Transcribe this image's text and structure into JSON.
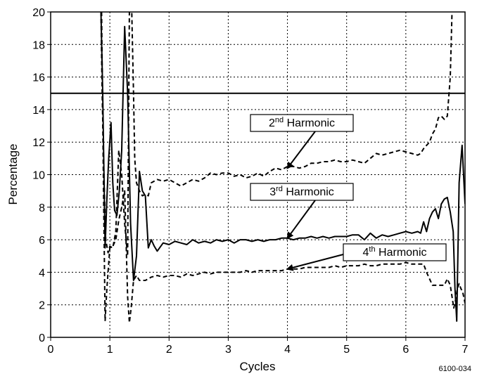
{
  "chart_data": {
    "type": "line",
    "xlabel": "Cycles",
    "ylabel": "Percentage",
    "xlim": [
      0,
      7
    ],
    "ylim": [
      0,
      20
    ],
    "x_ticks": [
      0,
      1,
      2,
      3,
      4,
      5,
      6,
      7
    ],
    "y_ticks": [
      0,
      2,
      4,
      6,
      8,
      10,
      12,
      14,
      16,
      18,
      20
    ],
    "grid": "dotted",
    "reference_line": {
      "y": 15,
      "style": "solid"
    },
    "annotations": [
      {
        "base": "2",
        "sup": "nd",
        "text": " Harmonic",
        "points_to": [
          4.0,
          10.4
        ]
      },
      {
        "base": "3",
        "sup": "rd",
        "text": " Harmonic",
        "points_to": [
          4.0,
          6.1
        ]
      },
      {
        "base": "4",
        "sup": "th",
        "text": " Harmonic",
        "points_to": [
          4.0,
          4.2
        ]
      }
    ],
    "figure_id": "6100-034",
    "series": [
      {
        "style": "dashed",
        "x": [
          0.85,
          0.87,
          0.9,
          0.93,
          0.97,
          1.0,
          1.05,
          1.1,
          1.15,
          1.2,
          1.25,
          1.3,
          1.33,
          1.37,
          1.4,
          1.42,
          1.45,
          1.5,
          1.55,
          1.6,
          1.65,
          1.7,
          1.8,
          1.9,
          2.0,
          2.1,
          2.2,
          2.3,
          2.4,
          2.5,
          2.6,
          2.7,
          2.8,
          2.9,
          3.0,
          3.1,
          3.2,
          3.3,
          3.4,
          3.5,
          3.6,
          3.7,
          3.8,
          3.9,
          4.0,
          4.1,
          4.2,
          4.3,
          4.4,
          4.5,
          4.6,
          4.7,
          4.8,
          4.9,
          5.0,
          5.1,
          5.2,
          5.3,
          5.4,
          5.5,
          5.6,
          5.7,
          5.8,
          5.9,
          6.0,
          6.1,
          6.2,
          6.25,
          6.3,
          6.35,
          6.4,
          6.45,
          6.5,
          6.55,
          6.6,
          6.65,
          6.7,
          6.75,
          6.78
        ],
        "y": [
          20,
          15.0,
          10.0,
          6.0,
          5.2,
          5.6,
          5.5,
          6.5,
          11.5,
          10.0,
          7.0,
          5.0,
          20,
          20,
          15.0,
          11.0,
          9.5,
          9.0,
          8.7,
          8.8,
          8.7,
          9.5,
          9.7,
          9.6,
          9.7,
          9.5,
          9.3,
          9.5,
          9.7,
          9.6,
          9.8,
          10.1,
          10.0,
          10.1,
          10.1,
          9.9,
          10.0,
          9.8,
          9.9,
          10.1,
          9.9,
          10.2,
          10.4,
          10.3,
          10.5,
          10.5,
          10.4,
          10.5,
          10.7,
          10.7,
          10.8,
          10.8,
          10.9,
          10.8,
          10.8,
          10.9,
          10.8,
          10.7,
          11.0,
          11.3,
          11.2,
          11.3,
          11.4,
          11.5,
          11.4,
          11.3,
          11.2,
          11.3,
          11.6,
          11.8,
          12.0,
          12.5,
          12.8,
          13.5,
          13.6,
          13.4,
          13.6,
          16.0,
          20
        ]
      },
      {
        "style": "solid",
        "x": [
          0.85,
          0.88,
          0.92,
          0.95,
          0.98,
          1.02,
          1.05,
          1.08,
          1.12,
          1.16,
          1.2,
          1.25,
          1.3,
          1.35,
          1.4,
          1.45,
          1.5,
          1.55,
          1.6,
          1.65,
          1.7,
          1.75,
          1.8,
          1.9,
          2.0,
          2.1,
          2.2,
          2.3,
          2.4,
          2.5,
          2.6,
          2.7,
          2.8,
          2.9,
          3.0,
          3.1,
          3.2,
          3.3,
          3.4,
          3.5,
          3.6,
          3.7,
          3.8,
          3.9,
          4.0,
          4.1,
          4.2,
          4.3,
          4.4,
          4.5,
          4.6,
          4.7,
          4.8,
          4.9,
          5.0,
          5.1,
          5.2,
          5.3,
          5.4,
          5.5,
          5.6,
          5.7,
          5.8,
          5.9,
          6.0,
          6.1,
          6.2,
          6.25,
          6.3,
          6.35,
          6.4,
          6.45,
          6.5,
          6.55,
          6.6,
          6.65,
          6.7,
          6.75,
          6.8,
          6.83,
          6.86,
          6.9,
          6.95,
          7.0
        ],
        "y": [
          20,
          15.0,
          5.5,
          8.5,
          11.0,
          13.2,
          9.5,
          7.8,
          7.5,
          9.0,
          11.5,
          19.1,
          15.0,
          7.0,
          3.5,
          5.0,
          10.2,
          9.0,
          8.7,
          5.5,
          6.0,
          5.6,
          5.3,
          5.8,
          5.7,
          5.9,
          5.8,
          5.7,
          6.0,
          5.8,
          5.9,
          5.8,
          6.0,
          5.9,
          6.0,
          5.8,
          6.0,
          6.0,
          5.9,
          6.0,
          5.9,
          6.0,
          6.0,
          6.1,
          6.1,
          6.0,
          6.1,
          6.1,
          6.2,
          6.1,
          6.2,
          6.1,
          6.2,
          6.2,
          6.2,
          6.3,
          6.3,
          6.0,
          6.4,
          6.1,
          6.3,
          6.2,
          6.3,
          6.4,
          6.5,
          6.4,
          6.5,
          6.4,
          7.1,
          6.5,
          7.3,
          7.7,
          7.9,
          7.3,
          8.2,
          8.5,
          8.6,
          7.7,
          6.5,
          3.0,
          1.0,
          9.5,
          11.8,
          8.2
        ]
      },
      {
        "style": "dashed",
        "x": [
          0.86,
          0.89,
          0.92,
          0.95,
          1.0,
          1.05,
          1.1,
          1.15,
          1.2,
          1.25,
          1.3,
          1.33,
          1.36,
          1.4,
          1.45,
          1.5,
          1.55,
          1.6,
          1.65,
          1.7,
          1.8,
          1.9,
          2.0,
          2.1,
          2.2,
          2.3,
          2.4,
          2.5,
          2.6,
          2.7,
          2.8,
          2.9,
          3.0,
          3.1,
          3.2,
          3.3,
          3.4,
          3.5,
          3.6,
          3.7,
          3.8,
          3.9,
          4.0,
          4.1,
          4.2,
          4.3,
          4.4,
          4.5,
          4.6,
          4.7,
          4.8,
          4.9,
          5.0,
          5.1,
          5.2,
          5.3,
          5.4,
          5.5,
          5.6,
          5.7,
          5.8,
          5.9,
          6.0,
          6.1,
          6.2,
          6.25,
          6.3,
          6.35,
          6.4,
          6.45,
          6.5,
          6.55,
          6.6,
          6.65,
          6.7,
          6.75,
          6.78,
          6.81,
          6.84,
          6.87,
          6.9,
          6.93,
          6.96,
          7.0
        ],
        "y": [
          20,
          10.0,
          1.0,
          3.0,
          5.5,
          5.6,
          6.0,
          7.2,
          8.0,
          9.0,
          2.5,
          0.9,
          1.8,
          3.5,
          3.8,
          3.5,
          3.5,
          3.5,
          3.6,
          3.7,
          3.8,
          3.7,
          3.8,
          3.8,
          3.7,
          3.9,
          3.8,
          3.9,
          4.0,
          3.9,
          4.0,
          4.0,
          4.0,
          4.0,
          4.0,
          4.1,
          4.0,
          4.1,
          4.1,
          4.1,
          4.1,
          4.1,
          4.2,
          4.2,
          4.2,
          4.3,
          4.3,
          4.3,
          4.3,
          4.3,
          4.4,
          4.3,
          4.4,
          4.4,
          4.4,
          4.5,
          4.4,
          4.4,
          4.5,
          4.5,
          4.5,
          4.5,
          4.6,
          4.5,
          4.5,
          4.5,
          4.5,
          4.0,
          3.6,
          3.2,
          3.2,
          3.2,
          3.2,
          3.2,
          3.6,
          3.2,
          2.5,
          1.8,
          2.3,
          3.0,
          3.3,
          3.0,
          2.8,
          2.1
        ]
      }
    ]
  }
}
